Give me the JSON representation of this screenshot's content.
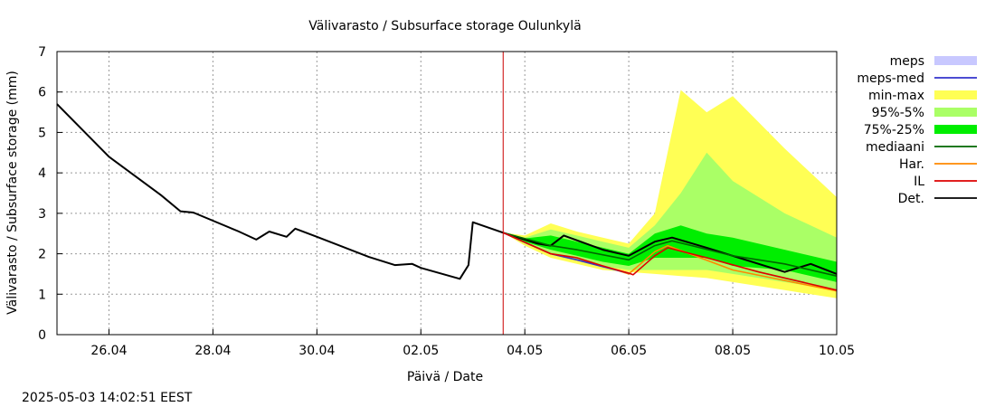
{
  "chart_data": {
    "type": "area",
    "title": "Välivarasto / Subsurface storage  Oulunkylä",
    "xlabel": "Päivä / Date",
    "ylabel": "Välivarasto / Subsurface storage (mm)",
    "timestamp": "2025-05-03 14:02:51 EEST",
    "xlim": [
      "2025-04-25T00:00",
      "2025-05-10T00:00"
    ],
    "ylim": [
      0,
      7
    ],
    "grid": true,
    "legend_position": "outside-right",
    "x_ticks": [
      {
        "x": "2025-04-26",
        "label": "26.04"
      },
      {
        "x": "2025-04-28",
        "label": "28.04"
      },
      {
        "x": "2025-04-30",
        "label": "30.04"
      },
      {
        "x": "2025-05-02",
        "label": "02.05"
      },
      {
        "x": "2025-05-04",
        "label": "04.05"
      },
      {
        "x": "2025-05-06",
        "label": "06.05"
      },
      {
        "x": "2025-05-08",
        "label": "08.05"
      },
      {
        "x": "2025-05-10",
        "label": "10.05"
      }
    ],
    "y_ticks": [
      "0",
      "1",
      "2",
      "3",
      "4",
      "5",
      "6",
      "7"
    ],
    "forecast_start": "2025-05-03T14:00",
    "forecast_marker_color": "#cc0000",
    "legend": [
      {
        "label": "meps",
        "kind": "box",
        "color": "#c8c8ff"
      },
      {
        "label": "meps-med",
        "kind": "line",
        "color": "#3333cc"
      },
      {
        "label": "min-max",
        "kind": "box",
        "color": "#ffff55"
      },
      {
        "label": "95%-5%",
        "kind": "box",
        "color": "#aaff66"
      },
      {
        "label": "75%-25%",
        "kind": "box",
        "color": "#00ee00"
      },
      {
        "label": "mediaani",
        "kind": "line",
        "color": "#006600"
      },
      {
        "label": "Har.",
        "kind": "line",
        "color": "#ff8800"
      },
      {
        "label": "IL",
        "kind": "line",
        "color": "#dd0000"
      },
      {
        "label": "Det.",
        "kind": "line",
        "color": "#000000"
      }
    ],
    "bands": [
      {
        "name": "min-max",
        "color": "#ffff55",
        "points": [
          {
            "x": "2025-05-03T14:00",
            "low": 2.52,
            "high": 2.52
          },
          {
            "x": "2025-05-04T00:00",
            "low": 2.2,
            "high": 2.45
          },
          {
            "x": "2025-05-04T12:00",
            "low": 1.9,
            "high": 2.75
          },
          {
            "x": "2025-05-05T00:00",
            "low": 1.75,
            "high": 2.55
          },
          {
            "x": "2025-05-05T12:00",
            "low": 1.6,
            "high": 2.4
          },
          {
            "x": "2025-05-06T00:00",
            "low": 1.55,
            "high": 2.25
          },
          {
            "x": "2025-05-06T12:00",
            "low": 1.5,
            "high": 3.0
          },
          {
            "x": "2025-05-07T00:00",
            "low": 1.45,
            "high": 6.05
          },
          {
            "x": "2025-05-07T12:00",
            "low": 1.4,
            "high": 5.5
          },
          {
            "x": "2025-05-08T00:00",
            "low": 1.3,
            "high": 5.9
          },
          {
            "x": "2025-05-09T00:00",
            "low": 1.1,
            "high": 4.6
          },
          {
            "x": "2025-05-10T00:00",
            "low": 0.9,
            "high": 3.4
          }
        ]
      },
      {
        "name": "95%-5%",
        "color": "#aaff66",
        "points": [
          {
            "x": "2025-05-03T14:00",
            "low": 2.52,
            "high": 2.52
          },
          {
            "x": "2025-05-04T00:00",
            "low": 2.25,
            "high": 2.4
          },
          {
            "x": "2025-05-04T12:00",
            "low": 2.0,
            "high": 2.6
          },
          {
            "x": "2025-05-05T00:00",
            "low": 1.85,
            "high": 2.45
          },
          {
            "x": "2025-05-05T12:00",
            "low": 1.7,
            "high": 2.3
          },
          {
            "x": "2025-05-06T00:00",
            "low": 1.6,
            "high": 2.15
          },
          {
            "x": "2025-05-06T12:00",
            "low": 1.6,
            "high": 2.7
          },
          {
            "x": "2025-05-07T00:00",
            "low": 1.6,
            "high": 3.5
          },
          {
            "x": "2025-05-07T12:00",
            "low": 1.6,
            "high": 4.5
          },
          {
            "x": "2025-05-08T00:00",
            "low": 1.5,
            "high": 3.8
          },
          {
            "x": "2025-05-09T00:00",
            "low": 1.3,
            "high": 3.0
          },
          {
            "x": "2025-05-10T00:00",
            "low": 1.1,
            "high": 2.4
          }
        ]
      },
      {
        "name": "75%-25%",
        "color": "#00ee00",
        "points": [
          {
            "x": "2025-05-03T14:00",
            "low": 2.52,
            "high": 2.52
          },
          {
            "x": "2025-05-04T00:00",
            "low": 2.3,
            "high": 2.38
          },
          {
            "x": "2025-05-04T12:00",
            "low": 2.1,
            "high": 2.45
          },
          {
            "x": "2025-05-05T00:00",
            "low": 1.95,
            "high": 2.3
          },
          {
            "x": "2025-05-05T12:00",
            "low": 1.8,
            "high": 2.15
          },
          {
            "x": "2025-05-06T00:00",
            "low": 1.7,
            "high": 2.0
          },
          {
            "x": "2025-05-06T12:00",
            "low": 1.9,
            "high": 2.5
          },
          {
            "x": "2025-05-07T00:00",
            "low": 1.9,
            "high": 2.7
          },
          {
            "x": "2025-05-07T12:00",
            "low": 1.9,
            "high": 2.5
          },
          {
            "x": "2025-05-08T00:00",
            "low": 1.7,
            "high": 2.4
          },
          {
            "x": "2025-05-09T00:00",
            "low": 1.6,
            "high": 2.1
          },
          {
            "x": "2025-05-10T00:00",
            "low": 1.3,
            "high": 1.8
          }
        ]
      }
    ],
    "series": [
      {
        "name": "Det.",
        "color": "#000000",
        "points": [
          {
            "x": "2025-04-25T00:00",
            "y": 5.7
          },
          {
            "x": "2025-04-26T00:00",
            "y": 4.4
          },
          {
            "x": "2025-04-27T00:00",
            "y": 3.45
          },
          {
            "x": "2025-04-27T09:00",
            "y": 3.05
          },
          {
            "x": "2025-04-27T15:00",
            "y": 3.02
          },
          {
            "x": "2025-04-28T12:00",
            "y": 2.55
          },
          {
            "x": "2025-04-28T20:00",
            "y": 2.35
          },
          {
            "x": "2025-04-29T02:00",
            "y": 2.55
          },
          {
            "x": "2025-04-29T10:00",
            "y": 2.42
          },
          {
            "x": "2025-04-29T14:00",
            "y": 2.62
          },
          {
            "x": "2025-04-30T00:00",
            "y": 2.42
          },
          {
            "x": "2025-05-01T00:00",
            "y": 1.92
          },
          {
            "x": "2025-05-01T12:00",
            "y": 1.72
          },
          {
            "x": "2025-05-01T20:00",
            "y": 1.75
          },
          {
            "x": "2025-05-02T00:00",
            "y": 1.65
          },
          {
            "x": "2025-05-02T18:00",
            "y": 1.38
          },
          {
            "x": "2025-05-02T22:00",
            "y": 1.72
          },
          {
            "x": "2025-05-03T00:00",
            "y": 2.78
          },
          {
            "x": "2025-05-03T14:00",
            "y": 2.52
          },
          {
            "x": "2025-05-04T06:00",
            "y": 2.25
          },
          {
            "x": "2025-05-04T12:00",
            "y": 2.2
          },
          {
            "x": "2025-05-04T18:00",
            "y": 2.45
          },
          {
            "x": "2025-05-05T12:00",
            "y": 2.1
          },
          {
            "x": "2025-05-06T00:00",
            "y": 1.95
          },
          {
            "x": "2025-05-06T12:00",
            "y": 2.3
          },
          {
            "x": "2025-05-06T20:00",
            "y": 2.4
          },
          {
            "x": "2025-05-07T12:00",
            "y": 2.15
          },
          {
            "x": "2025-05-08T12:00",
            "y": 1.75
          },
          {
            "x": "2025-05-09T00:00",
            "y": 1.55
          },
          {
            "x": "2025-05-09T12:00",
            "y": 1.75
          },
          {
            "x": "2025-05-10T00:00",
            "y": 1.5
          }
        ]
      },
      {
        "name": "mediaani",
        "color": "#006600",
        "points": [
          {
            "x": "2025-05-03T14:00",
            "y": 2.52
          },
          {
            "x": "2025-05-04T12:00",
            "y": 2.2
          },
          {
            "x": "2025-05-05T00:00",
            "y": 2.1
          },
          {
            "x": "2025-05-06T00:00",
            "y": 1.85
          },
          {
            "x": "2025-05-06T12:00",
            "y": 2.2
          },
          {
            "x": "2025-05-06T20:00",
            "y": 2.32
          },
          {
            "x": "2025-05-08T00:00",
            "y": 1.95
          },
          {
            "x": "2025-05-09T00:00",
            "y": 1.75
          },
          {
            "x": "2025-05-10T00:00",
            "y": 1.45
          }
        ]
      },
      {
        "name": "Har.",
        "color": "#ff8800",
        "points": [
          {
            "x": "2025-05-03T14:00",
            "y": 2.52
          },
          {
            "x": "2025-05-04T12:00",
            "y": 2.0
          },
          {
            "x": "2025-05-05T12:00",
            "y": 1.7
          },
          {
            "x": "2025-05-06T00:00",
            "y": 1.5
          },
          {
            "x": "2025-05-06T12:00",
            "y": 2.05
          },
          {
            "x": "2025-05-06T18:00",
            "y": 2.2
          },
          {
            "x": "2025-05-08T00:00",
            "y": 1.6
          },
          {
            "x": "2025-05-10T00:00",
            "y": 1.08
          }
        ]
      },
      {
        "name": "meps-med",
        "color": "#3333cc",
        "points": [
          {
            "x": "2025-05-03T14:00",
            "y": 2.52
          },
          {
            "x": "2025-05-04T12:00",
            "y": 2.0
          },
          {
            "x": "2025-05-05T00:00",
            "y": 1.85
          },
          {
            "x": "2025-05-05T12:00",
            "y": 1.68
          },
          {
            "x": "2025-05-06T00:00",
            "y": 1.52
          }
        ]
      },
      {
        "name": "IL",
        "color": "#dd0000",
        "points": [
          {
            "x": "2025-05-03T14:00",
            "y": 2.52
          },
          {
            "x": "2025-05-04T12:00",
            "y": 2.0
          },
          {
            "x": "2025-05-05T00:00",
            "y": 1.9
          },
          {
            "x": "2025-05-05T12:00",
            "y": 1.7
          },
          {
            "x": "2025-05-06T00:00",
            "y": 1.52
          },
          {
            "x": "2025-05-06T02:00",
            "y": 1.48
          },
          {
            "x": "2025-05-06T12:00",
            "y": 1.95
          },
          {
            "x": "2025-05-06T18:00",
            "y": 2.15
          },
          {
            "x": "2025-05-07T12:00",
            "y": 1.9
          },
          {
            "x": "2025-05-08T12:00",
            "y": 1.55
          },
          {
            "x": "2025-05-09T12:00",
            "y": 1.25
          },
          {
            "x": "2025-05-10T00:00",
            "y": 1.1
          }
        ]
      }
    ]
  }
}
